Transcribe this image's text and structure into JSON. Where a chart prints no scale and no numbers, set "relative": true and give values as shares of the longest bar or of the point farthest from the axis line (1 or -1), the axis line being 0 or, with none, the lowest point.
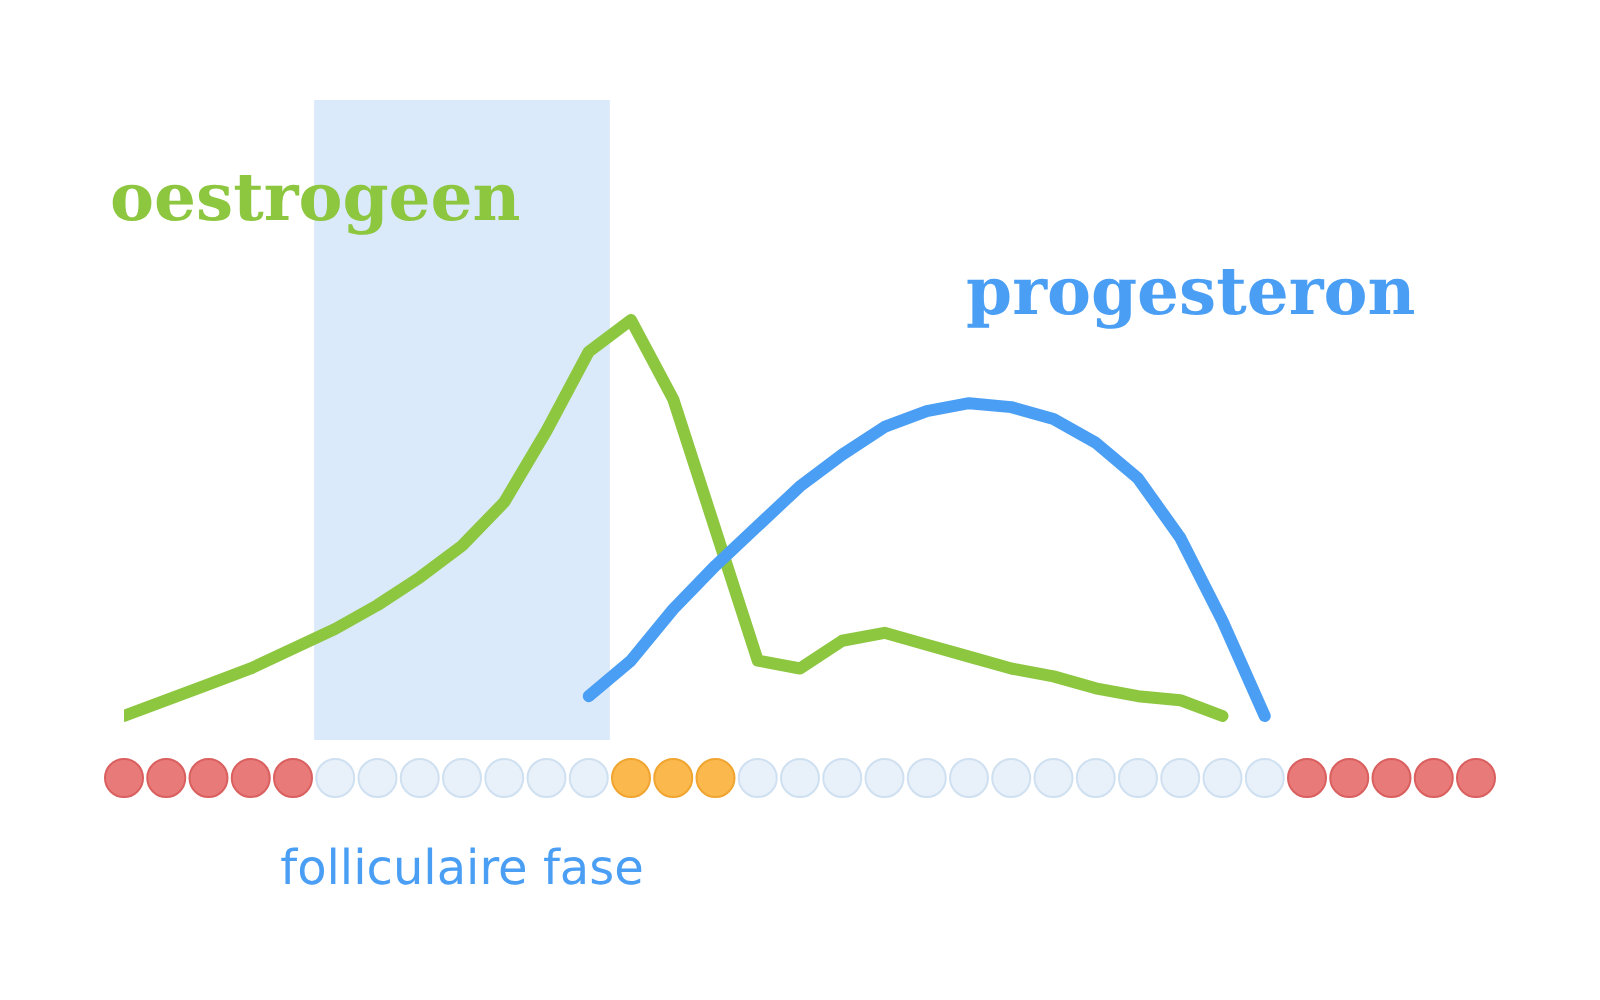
{
  "chart_data": {
    "type": "line",
    "relative": true,
    "grid": false,
    "legend": false,
    "marker": "none",
    "line_style": "solid",
    "categories": [
      null,
      null,
      null,
      null,
      null,
      null,
      null,
      null,
      null,
      null,
      null,
      null,
      null,
      null,
      null,
      null,
      null,
      null,
      null,
      null,
      null,
      null,
      null,
      null,
      null,
      null,
      null,
      null,
      null,
      null,
      null,
      null,
      null
    ],
    "series": [
      {
        "name": "oestrogeen",
        "color": "#8dc63f",
        "values": [
          0,
          0.04,
          0.08,
          0.12,
          0.17,
          0.22,
          0.28,
          0.35,
          0.43,
          0.54,
          0.72,
          0.92,
          1,
          0.8,
          0.47,
          0.14,
          0.12,
          0.19,
          0.21,
          0.18,
          0.15,
          0.12,
          0.1,
          0.07,
          0.05,
          0.04,
          0,
          null,
          null,
          null,
          null,
          null,
          null
        ]
      },
      {
        "name": "progesteron",
        "color": "#4a9ff5",
        "values": [
          null,
          null,
          null,
          null,
          null,
          null,
          null,
          null,
          null,
          null,
          null,
          0.05,
          0.14,
          0.27,
          0.38,
          0.48,
          0.58,
          0.66,
          0.73,
          0.77,
          0.79,
          0.78,
          0.75,
          0.69,
          0.6,
          0.45,
          0.24,
          0,
          null,
          null,
          null,
          null,
          null
        ]
      }
    ],
    "annotations": [
      "folliculaire fase"
    ]
  }
}
